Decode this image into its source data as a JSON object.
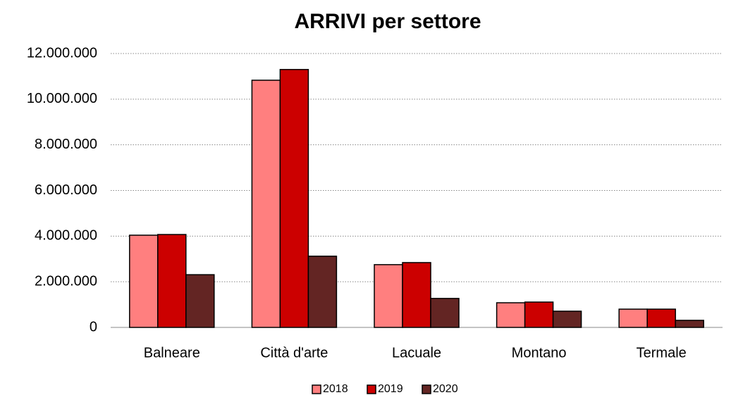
{
  "chart_data": {
    "type": "bar",
    "title": "ARRIVI per settore",
    "categories": [
      "Balneare",
      "Città d'arte",
      "Lacuale",
      "Montano",
      "Termale"
    ],
    "series": [
      {
        "name": "2018",
        "color": "#ff7f7f",
        "values": [
          4040000,
          10830000,
          2750000,
          1080000,
          800000
        ]
      },
      {
        "name": "2019",
        "color": "#cc0000",
        "values": [
          4070000,
          11300000,
          2840000,
          1110000,
          800000
        ]
      },
      {
        "name": "2020",
        "color": "#632523",
        "values": [
          2310000,
          3120000,
          1270000,
          710000,
          310000
        ]
      }
    ],
    "ylim": [
      0,
      12000000
    ],
    "yticks": [
      0,
      {
        "value": 2000000,
        "label": "2.000.000"
      },
      {
        "value": 4000000,
        "label": "4.000.000"
      },
      {
        "value": 6000000,
        "label": "6.000.000"
      },
      {
        "value": 8000000,
        "label": "8.000.000"
      },
      {
        "value": 10000000,
        "label": "10.000.000"
      },
      {
        "value": 12000000,
        "label": "12.000.000"
      }
    ],
    "grid": true,
    "legend": "bottom"
  }
}
